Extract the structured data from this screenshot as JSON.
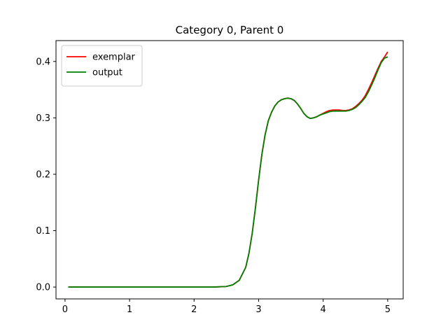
{
  "chart_data": {
    "type": "line",
    "title": "Category 0, Parent 0",
    "xlabel": "",
    "ylabel": "",
    "xlim": [
      -0.14,
      5.24
    ],
    "ylim": [
      -0.021,
      0.437
    ],
    "xticks": [
      0,
      1,
      2,
      3,
      4,
      5
    ],
    "xtick_labels": [
      "0",
      "1",
      "2",
      "3",
      "4",
      "5"
    ],
    "yticks": [
      0.0,
      0.1,
      0.2,
      0.3,
      0.4
    ],
    "ytick_labels": [
      "0.0",
      "0.1",
      "0.2",
      "0.3",
      "0.4"
    ],
    "grid": false,
    "legend": "top-left",
    "series": [
      {
        "name": "exemplar",
        "color": "#ff0000",
        "x": [
          0.05,
          0.5,
          1.0,
          1.5,
          2.0,
          2.3,
          2.5,
          2.6,
          2.7,
          2.8,
          2.85,
          2.9,
          2.95,
          3.0,
          3.05,
          3.1,
          3.15,
          3.2,
          3.25,
          3.3,
          3.35,
          3.4,
          3.45,
          3.5,
          3.55,
          3.6,
          3.65,
          3.7,
          3.75,
          3.8,
          3.85,
          3.9,
          3.95,
          4.0,
          4.05,
          4.1,
          4.15,
          4.2,
          4.25,
          4.3,
          4.35,
          4.4,
          4.45,
          4.5,
          4.55,
          4.6,
          4.65,
          4.7,
          4.75,
          4.8,
          4.85,
          4.9,
          4.95,
          5.0
        ],
        "y": [
          0.0,
          0.0,
          0.0,
          0.0,
          0.0,
          0.0,
          0.001,
          0.004,
          0.012,
          0.035,
          0.06,
          0.095,
          0.14,
          0.19,
          0.235,
          0.27,
          0.295,
          0.31,
          0.321,
          0.328,
          0.332,
          0.334,
          0.335,
          0.334,
          0.331,
          0.325,
          0.317,
          0.308,
          0.302,
          0.299,
          0.3,
          0.302,
          0.305,
          0.308,
          0.311,
          0.313,
          0.314,
          0.314,
          0.314,
          0.313,
          0.313,
          0.314,
          0.316,
          0.32,
          0.325,
          0.331,
          0.339,
          0.35,
          0.362,
          0.375,
          0.388,
          0.4,
          0.408,
          0.417
        ]
      },
      {
        "name": "output",
        "color": "#008000",
        "x": [
          0.05,
          0.5,
          1.0,
          1.5,
          2.0,
          2.3,
          2.5,
          2.6,
          2.7,
          2.8,
          2.85,
          2.9,
          2.95,
          3.0,
          3.05,
          3.1,
          3.15,
          3.2,
          3.25,
          3.3,
          3.35,
          3.4,
          3.45,
          3.5,
          3.55,
          3.6,
          3.65,
          3.7,
          3.75,
          3.8,
          3.85,
          3.9,
          3.95,
          4.0,
          4.05,
          4.1,
          4.15,
          4.2,
          4.25,
          4.3,
          4.35,
          4.4,
          4.45,
          4.5,
          4.55,
          4.6,
          4.65,
          4.7,
          4.75,
          4.8,
          4.85,
          4.9,
          4.95,
          5.0
        ],
        "y": [
          0.0,
          0.0,
          0.0,
          0.0,
          0.0,
          0.0,
          0.001,
          0.004,
          0.012,
          0.035,
          0.06,
          0.095,
          0.14,
          0.19,
          0.235,
          0.27,
          0.295,
          0.31,
          0.321,
          0.328,
          0.332,
          0.334,
          0.335,
          0.334,
          0.331,
          0.325,
          0.317,
          0.308,
          0.302,
          0.299,
          0.3,
          0.302,
          0.305,
          0.307,
          0.309,
          0.311,
          0.312,
          0.312,
          0.312,
          0.312,
          0.312,
          0.313,
          0.315,
          0.318,
          0.323,
          0.329,
          0.336,
          0.346,
          0.358,
          0.371,
          0.385,
          0.398,
          0.406,
          0.408
        ]
      }
    ]
  }
}
